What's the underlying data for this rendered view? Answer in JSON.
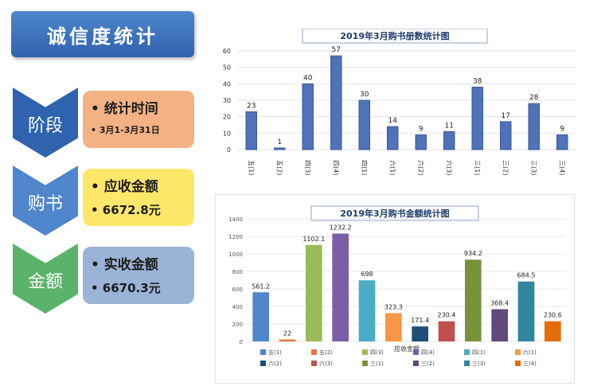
{
  "left": {
    "title": "诚信度统计",
    "steps": [
      {
        "chevron": "阶段",
        "line1": "• 统计时间",
        "line2": "• 3月1-3月31日",
        "box_color": "#f4b183",
        "chevron_color": "#2f63ad"
      },
      {
        "chevron": "购书",
        "line1": "• 应收金额",
        "line2": "• 6672.8元",
        "box_color": "#ffe76a",
        "chevron_color": "#4f86cc"
      },
      {
        "chevron": "金额",
        "line1": "• 实收金额",
        "line2": "• 6670.3元",
        "box_color": "#9ab3d6",
        "chevron_color": "#5bb36a"
      }
    ]
  },
  "chart_data": [
    {
      "type": "bar",
      "title": "2019年3月购书册数统计图",
      "categories": [
        "五(1)",
        "五(2)",
        "四(3)",
        "四(4)",
        "四(1)",
        "六(1)",
        "六(2)",
        "六(3)",
        "三(1)",
        "三(2)",
        "三(3)",
        "三(4)"
      ],
      "values": [
        23,
        1,
        40,
        57,
        30,
        14,
        9,
        11,
        38,
        17,
        28,
        9
      ],
      "ylim": [
        0,
        60
      ],
      "yticks": [
        "0",
        "10",
        "20",
        "30",
        "40",
        "50",
        "60"
      ],
      "colors": {
        "bar": "#4f72b8"
      }
    },
    {
      "type": "bar",
      "title": "2019年3月购书金额统计图",
      "xlabel": "应收金额",
      "categories": [
        "五(1)",
        "五(2)",
        "四(3)",
        "四(4)",
        "四(1)",
        "六(1)",
        "六(2)",
        "六(3)",
        "三(1)",
        "三(2)",
        "三(3)",
        "三(4)"
      ],
      "values": [
        561.2,
        22,
        1102.1,
        1232.2,
        698,
        323.3,
        171.4,
        230.4,
        934.2,
        368.4,
        684.5,
        230.6
      ],
      "labels": [
        "561.2",
        "22",
        "1102.1",
        "1232.2",
        "698",
        "323.3",
        "171.4",
        "230.4",
        "934.2",
        "368.4",
        "684.5",
        "230.6"
      ],
      "ylim": [
        0,
        1400
      ],
      "yticks": [
        "0",
        "200",
        "400",
        "600",
        "800",
        "1000",
        "1200",
        "1400"
      ],
      "colors": [
        "#4f86cc",
        "#e8743b",
        "#9bbb59",
        "#7b5ea8",
        "#4bacc6",
        "#f79646",
        "#1f4e79",
        "#c0504d",
        "#76923c",
        "#604a7b",
        "#31859c",
        "#e46c0a"
      ],
      "legend_position": "bottom"
    }
  ]
}
